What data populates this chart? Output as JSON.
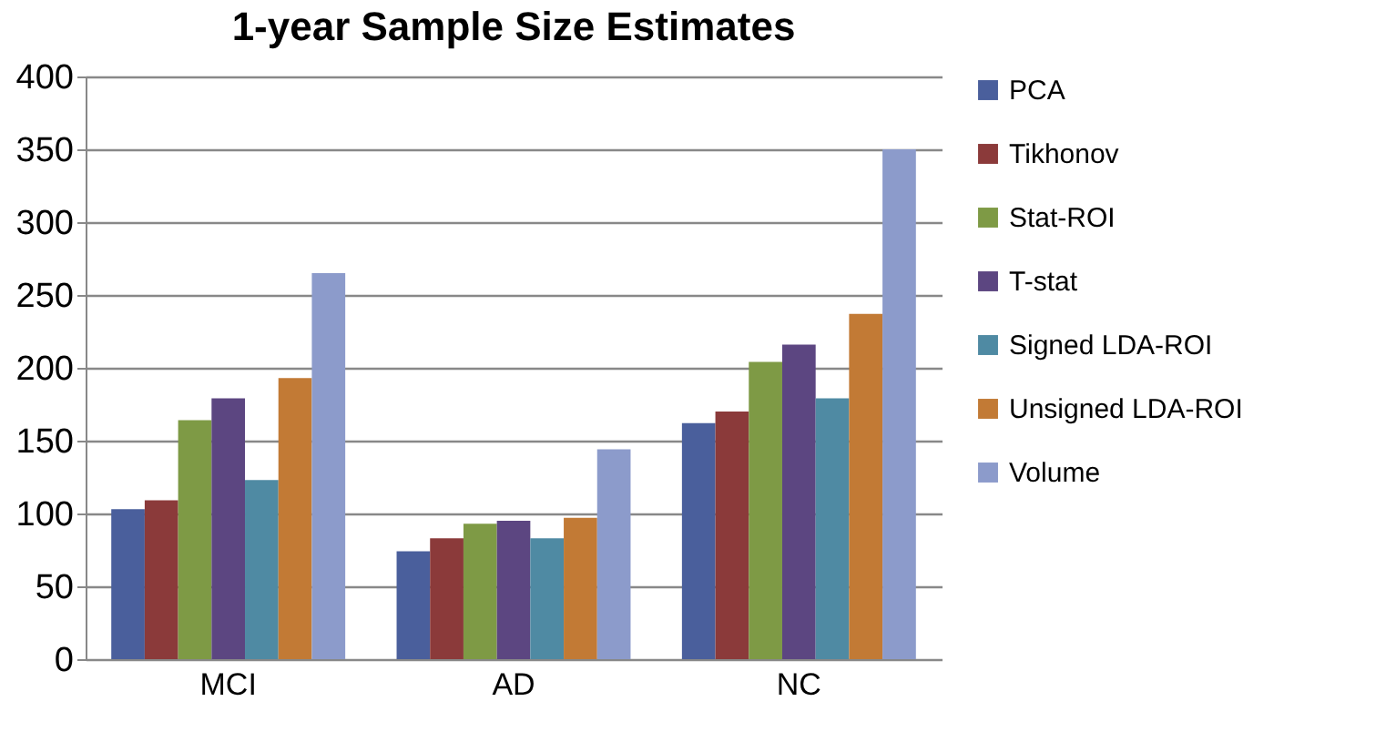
{
  "chart_data": {
    "type": "bar",
    "title": "1-year Sample Size Estimates",
    "categories": [
      "MCI",
      "AD",
      "NC"
    ],
    "series": [
      {
        "name": "PCA",
        "color": "#4a5f9c",
        "values": [
          103,
          74,
          162
        ]
      },
      {
        "name": "Tikhonov",
        "color": "#8b3a3a",
        "values": [
          109,
          83,
          170
        ]
      },
      {
        "name": "Stat-ROI",
        "color": "#7e9a45",
        "values": [
          164,
          93,
          204
        ]
      },
      {
        "name": "T-stat",
        "color": "#5c4681",
        "values": [
          179,
          95,
          216
        ]
      },
      {
        "name": "Signed LDA-ROI",
        "color": "#4f8aa3",
        "values": [
          123,
          83,
          179
        ]
      },
      {
        "name": "Unsigned LDA-ROI",
        "color": "#c27a35",
        "values": [
          193,
          97,
          237
        ]
      },
      {
        "name": "Volume",
        "color": "#8c9bcb",
        "values": [
          265,
          144,
          350
        ]
      }
    ],
    "ylim": [
      0,
      400
    ],
    "yticks": [
      0,
      50,
      100,
      150,
      200,
      250,
      300,
      350,
      400
    ],
    "grid": "y",
    "legend": "right"
  }
}
